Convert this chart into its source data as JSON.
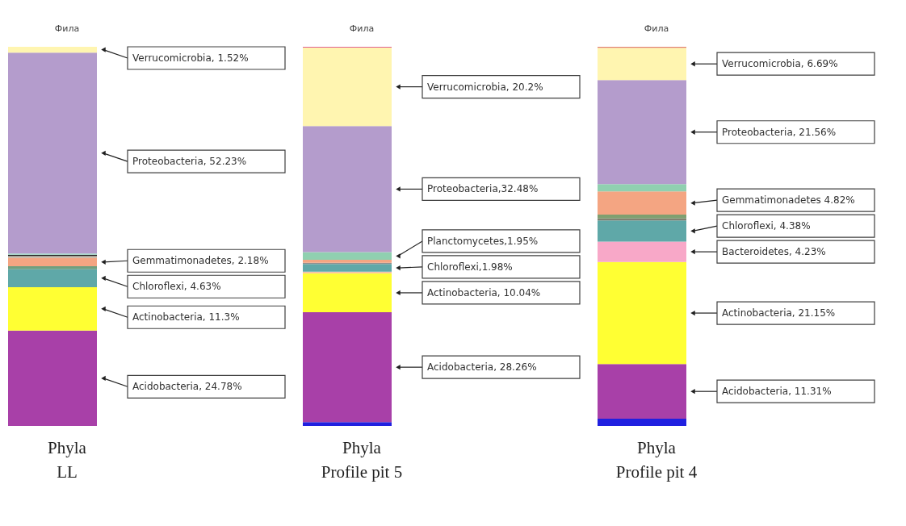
{
  "chart_data": [
    {
      "type": "bar",
      "stacked": true,
      "title": "Фила",
      "xlabel": "Phyla",
      "categories": [
        "LL"
      ],
      "series": [
        {
          "color": "#a840a8",
          "values": [
            24.78
          ],
          "value_labels": [
            "Acidobacteria, 24.78%"
          ]
        },
        {
          "color": "#ffff33",
          "values": [
            11.3
          ],
          "value_labels": [
            "Actinobacteria, 11.3%"
          ]
        },
        {
          "color": "#5fa8a8",
          "values": [
            4.63
          ],
          "value_labels": [
            "Chloroflexi, 4.63%"
          ]
        },
        {
          "color": "#6f9f7f",
          "values": [
            0.8
          ]
        },
        {
          "color": "#f4a582",
          "values": [
            2.18
          ],
          "value_labels": [
            "Gemmatimonadetes, 2.18%"
          ]
        },
        {
          "color": "#b8b0a0",
          "values": [
            0.5
          ]
        },
        {
          "color": "#202020",
          "values": [
            0.3
          ]
        },
        {
          "color": "#a0d8c8",
          "values": [
            0.3
          ]
        },
        {
          "color": "#b49ccc",
          "values": [
            52.23
          ],
          "value_labels": [
            "Proteobacteria, 52.23%"
          ]
        },
        {
          "color": "#fff5b0",
          "values": [
            1.52
          ],
          "value_labels": [
            "Verrucomicrobia, 1.52%"
          ]
        }
      ]
    },
    {
      "type": "bar",
      "stacked": true,
      "title": "Фила",
      "xlabel": "Phyla",
      "categories": [
        "Profile pit 5"
      ],
      "series": [
        {
          "color": "#2020e0",
          "values": [
            1.0
          ]
        },
        {
          "color": "#a840a8",
          "values": [
            28.26
          ],
          "value_labels": [
            "Acidobacteria, 28.26%"
          ]
        },
        {
          "color": "#ffff33",
          "values": [
            10.04
          ],
          "value_labels": [
            "Actinobacteria, 10.04%"
          ]
        },
        {
          "color": "#f8c0a0",
          "values": [
            0.4
          ]
        },
        {
          "color": "#5fa8a8",
          "values": [
            1.98
          ],
          "value_labels": [
            "Chloroflexi,1.98%"
          ]
        },
        {
          "color": "#909090",
          "values": [
            0.3
          ]
        },
        {
          "color": "#f4a582",
          "values": [
            0.8
          ]
        },
        {
          "color": "#90d0b0",
          "values": [
            1.95
          ],
          "value_labels": [
            "Planctomycetes,1.95%"
          ]
        },
        {
          "color": "#b49ccc",
          "values": [
            32.48
          ],
          "value_labels": [
            "Proteobacteria,32.48%"
          ]
        },
        {
          "color": "#fff5b0",
          "values": [
            20.2
          ],
          "value_labels": [
            "Verrucomicrobia, 20.2%"
          ]
        },
        {
          "color": "#e06090",
          "values": [
            0.2
          ]
        }
      ]
    },
    {
      "type": "bar",
      "stacked": true,
      "title": "Фила",
      "xlabel": "Phyla",
      "categories": [
        "Profile pit 4"
      ],
      "series": [
        {
          "color": "#2020e0",
          "values": [
            1.5
          ]
        },
        {
          "color": "#a840a8",
          "values": [
            11.31
          ],
          "value_labels": [
            "Acidobacteria, 11.31%"
          ]
        },
        {
          "color": "#ffff33",
          "values": [
            21.15
          ],
          "value_labels": [
            "Actinobacteria, 21.15%"
          ]
        },
        {
          "color": "#f8a8c8",
          "values": [
            4.23
          ],
          "value_labels": [
            "Bacteroidetes, 4.23%"
          ]
        },
        {
          "color": "#5fa8a8",
          "values": [
            4.38
          ],
          "value_labels": [
            "Chloroflexi, 4.38%"
          ]
        },
        {
          "color": "#808070",
          "values": [
            0.4
          ]
        },
        {
          "color": "#7f9f70",
          "values": [
            0.8
          ]
        },
        {
          "color": "#f4a582",
          "values": [
            4.82
          ],
          "value_labels": [
            "Gemmatimonadetes 4.82%"
          ]
        },
        {
          "color": "#90d0b0",
          "values": [
            1.5
          ]
        },
        {
          "color": "#b49ccc",
          "values": [
            21.56
          ],
          "value_labels": [
            "Proteobacteria, 21.56%"
          ]
        },
        {
          "color": "#fff5b0",
          "values": [
            6.69
          ],
          "value_labels": [
            "Verrucomicrobia, 6.69%"
          ]
        },
        {
          "color": "#e08070",
          "values": [
            0.2
          ]
        }
      ]
    }
  ]
}
